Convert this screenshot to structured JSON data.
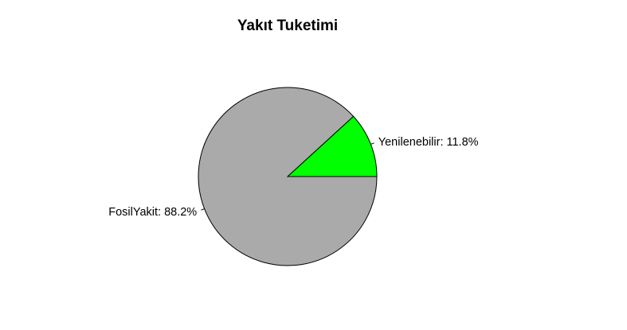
{
  "chart_data": {
    "type": "pie",
    "title": "Yakıt Tuketimi",
    "slices": [
      {
        "name": "Yenilenebilir",
        "value": 11.8,
        "label": "Yenilenebilir: 11.8%",
        "color": "#00ff00"
      },
      {
        "name": "FosilYakit",
        "value": 88.2,
        "label": "FosilYakit: 88.2%",
        "color": "#aaaaaa"
      }
    ],
    "start": "3 o'clock",
    "direction": "counter-clockwise",
    "legend": "none"
  }
}
